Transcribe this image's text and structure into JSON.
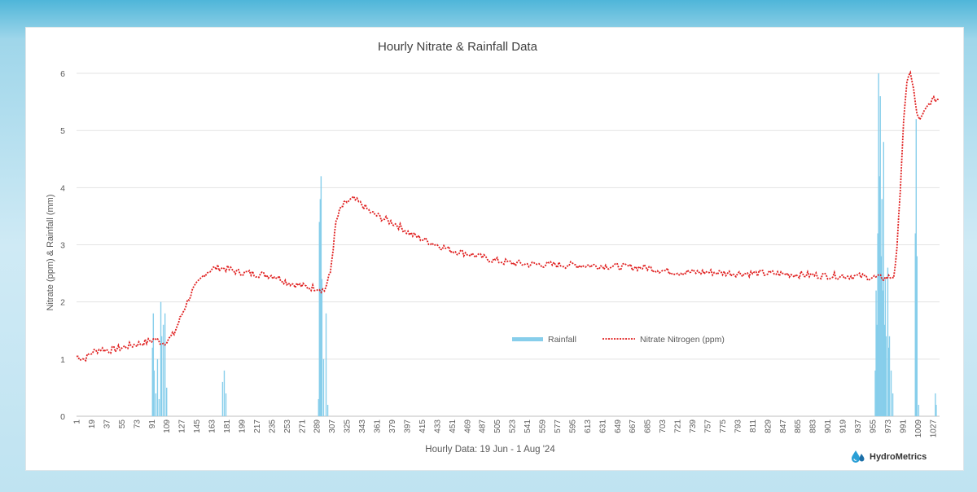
{
  "chart_data": {
    "type": "bar+line",
    "title": "Hourly Nitrate & Rainfall Data",
    "xlabel": "Hourly Data: 19 Jun - 1 Aug '24",
    "ylabel": "Nitrate (ppm) & Rainfall (mm)",
    "ylim": [
      0,
      6.3
    ],
    "yticks": [
      "0",
      "1",
      "2",
      "3",
      "4",
      "5",
      "6"
    ],
    "xlim": [
      1,
      1035
    ],
    "xticks": [
      "1",
      "19",
      "37",
      "55",
      "73",
      "91",
      "109",
      "127",
      "145",
      "163",
      "181",
      "199",
      "217",
      "235",
      "253",
      "271",
      "289",
      "307",
      "325",
      "343",
      "361",
      "379",
      "397",
      "415",
      "433",
      "451",
      "469",
      "487",
      "505",
      "523",
      "541",
      "559",
      "577",
      "595",
      "613",
      "631",
      "649",
      "667",
      "685",
      "703",
      "721",
      "739",
      "757",
      "775",
      "793",
      "811",
      "829",
      "847",
      "865",
      "883",
      "901",
      "919",
      "937",
      "955",
      "973",
      "991",
      "1009",
      "1027"
    ],
    "grid": "horizontal",
    "legend_position": "right-center",
    "colors": {
      "rainfall": "#87ceeb",
      "nitrate": "#e02020"
    },
    "series": [
      {
        "name": "Rainfall",
        "kind": "bar",
        "points": [
          [
            92,
            1.2
          ],
          [
            93,
            1.8
          ],
          [
            94,
            0.8
          ],
          [
            96,
            0.4
          ],
          [
            98,
            1.0
          ],
          [
            100,
            0.3
          ],
          [
            102,
            2.0
          ],
          [
            103,
            1.4
          ],
          [
            105,
            1.6
          ],
          [
            107,
            1.8
          ],
          [
            109,
            0.5
          ],
          [
            176,
            0.6
          ],
          [
            178,
            0.8
          ],
          [
            180,
            0.4
          ],
          [
            291,
            0.3
          ],
          [
            292,
            3.4
          ],
          [
            293,
            3.8
          ],
          [
            294,
            4.2
          ],
          [
            295,
            2.4
          ],
          [
            297,
            1.0
          ],
          [
            300,
            1.8
          ],
          [
            302,
            0.2
          ],
          [
            958,
            0.8
          ],
          [
            959,
            2.2
          ],
          [
            960,
            1.6
          ],
          [
            961,
            3.2
          ],
          [
            962,
            6.0
          ],
          [
            963,
            4.2
          ],
          [
            964,
            5.6
          ],
          [
            965,
            2.8
          ],
          [
            966,
            3.8
          ],
          [
            967,
            2.2
          ],
          [
            968,
            4.8
          ],
          [
            969,
            1.6
          ],
          [
            970,
            2.4
          ],
          [
            971,
            1.4
          ],
          [
            973,
            2.6
          ],
          [
            974,
            1.2
          ],
          [
            975,
            1.4
          ],
          [
            977,
            0.8
          ],
          [
            979,
            0.4
          ],
          [
            1006,
            3.2
          ],
          [
            1007,
            5.2
          ],
          [
            1008,
            2.8
          ],
          [
            1010,
            0.2
          ],
          [
            1030,
            0.4
          ],
          [
            1031,
            0.2
          ]
        ]
      },
      {
        "name": "Nitrate Nitrogen (ppm)",
        "kind": "line",
        "points": [
          [
            1,
            1.05
          ],
          [
            10,
            1.0
          ],
          [
            20,
            1.12
          ],
          [
            30,
            1.18
          ],
          [
            40,
            1.15
          ],
          [
            55,
            1.2
          ],
          [
            70,
            1.25
          ],
          [
            85,
            1.3
          ],
          [
            95,
            1.35
          ],
          [
            105,
            1.28
          ],
          [
            112,
            1.35
          ],
          [
            118,
            1.45
          ],
          [
            125,
            1.7
          ],
          [
            132,
            1.95
          ],
          [
            140,
            2.2
          ],
          [
            148,
            2.35
          ],
          [
            155,
            2.5
          ],
          [
            163,
            2.58
          ],
          [
            172,
            2.6
          ],
          [
            182,
            2.58
          ],
          [
            195,
            2.52
          ],
          [
            210,
            2.5
          ],
          [
            225,
            2.48
          ],
          [
            240,
            2.45
          ],
          [
            253,
            2.35
          ],
          [
            265,
            2.3
          ],
          [
            280,
            2.25
          ],
          [
            290,
            2.25
          ],
          [
            298,
            2.2
          ],
          [
            305,
            2.5
          ],
          [
            312,
            3.4
          ],
          [
            318,
            3.65
          ],
          [
            325,
            3.75
          ],
          [
            333,
            3.8
          ],
          [
            343,
            3.7
          ],
          [
            355,
            3.55
          ],
          [
            370,
            3.45
          ],
          [
            385,
            3.35
          ],
          [
            400,
            3.2
          ],
          [
            415,
            3.1
          ],
          [
            433,
            3.0
          ],
          [
            451,
            2.9
          ],
          [
            469,
            2.85
          ],
          [
            487,
            2.78
          ],
          [
            505,
            2.72
          ],
          [
            523,
            2.68
          ],
          [
            541,
            2.66
          ],
          [
            577,
            2.65
          ],
          [
            613,
            2.64
          ],
          [
            649,
            2.62
          ],
          [
            685,
            2.6
          ],
          [
            703,
            2.55
          ],
          [
            721,
            2.52
          ],
          [
            757,
            2.52
          ],
          [
            793,
            2.5
          ],
          [
            829,
            2.5
          ],
          [
            865,
            2.48
          ],
          [
            901,
            2.46
          ],
          [
            937,
            2.45
          ],
          [
            955,
            2.43
          ],
          [
            970,
            2.42
          ],
          [
            980,
            2.45
          ],
          [
            984,
            2.9
          ],
          [
            988,
            4.0
          ],
          [
            992,
            5.2
          ],
          [
            996,
            5.8
          ],
          [
            1000,
            6.05
          ],
          [
            1004,
            5.7
          ],
          [
            1008,
            5.25
          ],
          [
            1013,
            5.2
          ],
          [
            1018,
            5.35
          ],
          [
            1024,
            5.5
          ],
          [
            1030,
            5.55
          ],
          [
            1035,
            5.55
          ]
        ]
      }
    ]
  },
  "branding": {
    "logo_text": "HydroMetrics",
    "logo_icon": "water-drops-icon"
  }
}
